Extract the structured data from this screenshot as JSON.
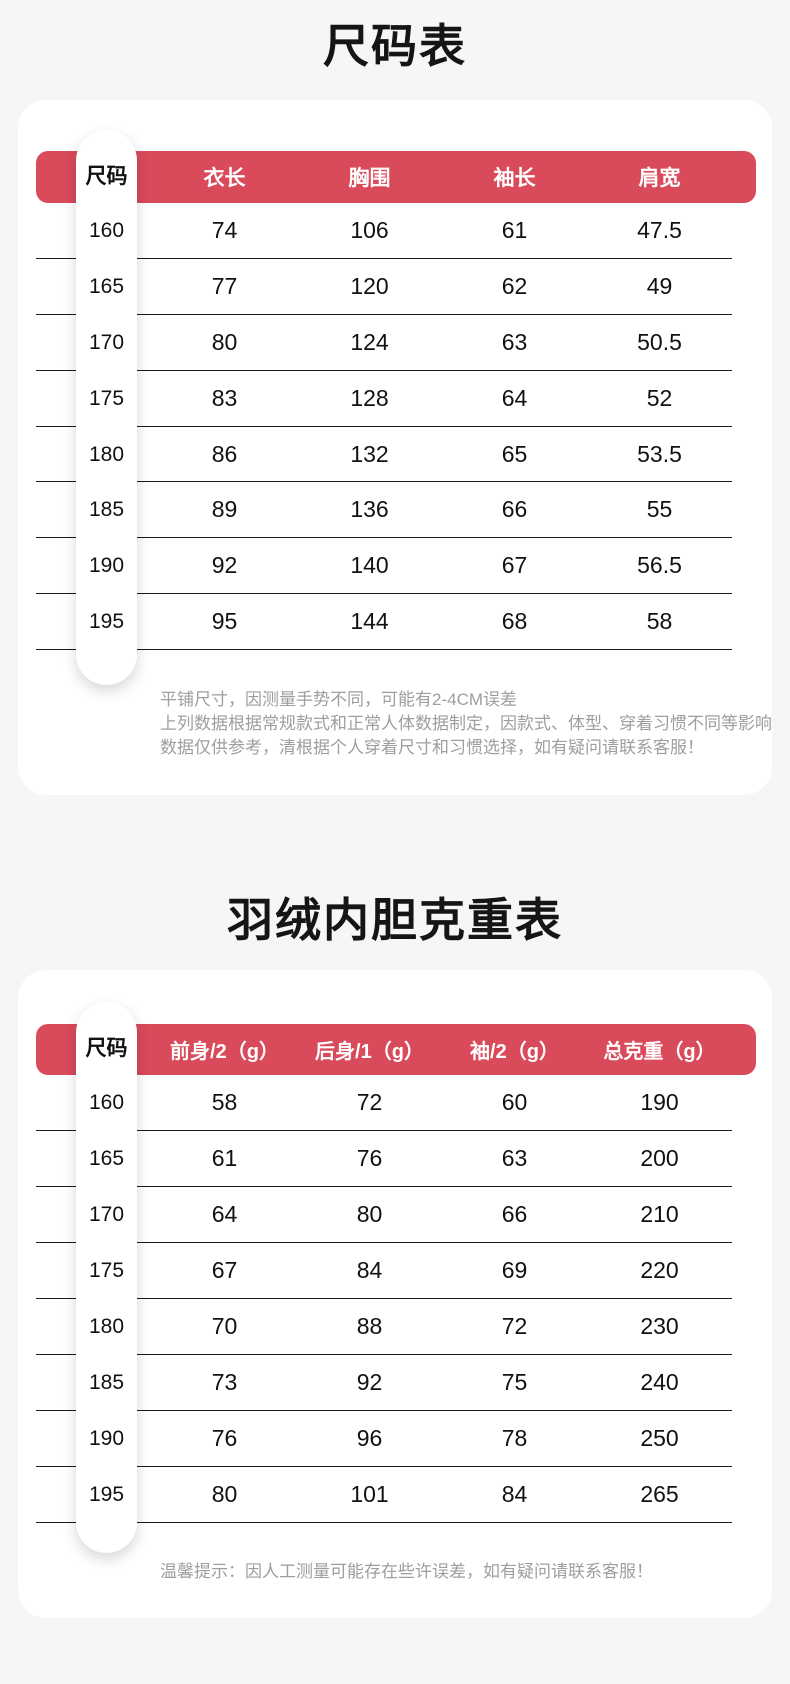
{
  "page": {
    "background": "#f6f6f7",
    "card_background": "#ffffff",
    "accent_red": "#d94a5b",
    "divider_color": "#1a1a1a",
    "note_gray": "#9e9e9e"
  },
  "size_chart": {
    "title": "尺码表",
    "size_col_header": "尺码",
    "columns": [
      "衣长",
      "胸围",
      "袖长",
      "肩宽"
    ],
    "rows": [
      {
        "size": "160",
        "values": [
          "74",
          "106",
          "61",
          "47.5"
        ]
      },
      {
        "size": "165",
        "values": [
          "77",
          "120",
          "62",
          "49"
        ]
      },
      {
        "size": "170",
        "values": [
          "80",
          "124",
          "63",
          "50.5"
        ]
      },
      {
        "size": "175",
        "values": [
          "83",
          "128",
          "64",
          "52"
        ]
      },
      {
        "size": "180",
        "values": [
          "86",
          "132",
          "65",
          "53.5"
        ]
      },
      {
        "size": "185",
        "values": [
          "89",
          "136",
          "66",
          "55"
        ]
      },
      {
        "size": "190",
        "values": [
          "92",
          "140",
          "67",
          "56.5"
        ]
      },
      {
        "size": "195",
        "values": [
          "95",
          "144",
          "68",
          "58"
        ]
      }
    ],
    "notes": [
      "平铺尺寸，因测量手势不同，可能有2-4CM误差",
      "上列数据根据常规款式和正常人体数据制定，因款式、体型、穿着习惯不同等影响",
      "数据仅供参考，清根据个人穿着尺寸和习惯选择，如有疑问请联系客服！"
    ]
  },
  "down_weight_chart": {
    "title": "羽绒内胆克重表",
    "size_col_header": "尺码",
    "columns": [
      "前身/2（g）",
      "后身/1（g）",
      "袖/2（g）",
      "总克重（g）"
    ],
    "rows": [
      {
        "size": "160",
        "values": [
          "58",
          "72",
          "60",
          "190"
        ]
      },
      {
        "size": "165",
        "values": [
          "61",
          "76",
          "63",
          "200"
        ]
      },
      {
        "size": "170",
        "values": [
          "64",
          "80",
          "66",
          "210"
        ]
      },
      {
        "size": "175",
        "values": [
          "67",
          "84",
          "69",
          "220"
        ]
      },
      {
        "size": "180",
        "values": [
          "70",
          "88",
          "72",
          "230"
        ]
      },
      {
        "size": "185",
        "values": [
          "73",
          "92",
          "75",
          "240"
        ]
      },
      {
        "size": "190",
        "values": [
          "76",
          "96",
          "78",
          "250"
        ]
      },
      {
        "size": "195",
        "values": [
          "80",
          "101",
          "84",
          "265"
        ]
      }
    ],
    "notes": [
      "温馨提示：因人工测量可能存在些许误差，如有疑问请联系客服！"
    ]
  }
}
